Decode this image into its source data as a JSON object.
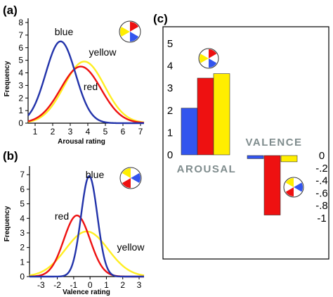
{
  "colors": {
    "blue": "#2233aa",
    "red": "#ee1111",
    "yellow": "#ffee22",
    "bar_blue": "#3355ee",
    "bar_yellow": "#ffee00",
    "label_gray": "#7f8c8d"
  },
  "chart_data": [
    {
      "panel_label": "(a)",
      "type": "line",
      "xlabel": "Arousal rating",
      "ylabel": "Frequency",
      "xlim": [
        0.6,
        7.2
      ],
      "ylim": [
        0,
        8
      ],
      "x_ticks": [
        "1",
        "2",
        "3",
        "4",
        "5",
        "6",
        "7"
      ],
      "y_ticks": [
        "0",
        "1",
        "2",
        "3",
        "4",
        "5",
        "6",
        "7",
        "8"
      ],
      "series": [
        {
          "name": "blue",
          "color": "#2233aa",
          "mean": 2.45,
          "sd": 0.85,
          "peak": 6.5
        },
        {
          "name": "yellow",
          "color": "#ffee22",
          "mean": 3.8,
          "sd": 1.15,
          "peak": 4.9
        },
        {
          "name": "red",
          "color": "#ee1111",
          "mean": 3.6,
          "sd": 1.15,
          "peak": 4.5
        }
      ]
    },
    {
      "panel_label": "(b)",
      "type": "line",
      "xlabel": "Valence rating",
      "ylabel": "Frequency",
      "xlim": [
        -3.7,
        3.3
      ],
      "ylim": [
        0,
        7.3
      ],
      "x_ticks": [
        "-3",
        "-2",
        "-1",
        "0",
        "1",
        "2",
        "3"
      ],
      "y_ticks": [
        "0",
        "1",
        "2",
        "3",
        "4",
        "5",
        "6",
        "7"
      ],
      "series": [
        {
          "name": "blue",
          "color": "#2233aa",
          "mean": -0.05,
          "sd": 0.5,
          "peak": 6.9
        },
        {
          "name": "red",
          "color": "#ee1111",
          "mean": -0.8,
          "sd": 0.8,
          "peak": 4.2
        },
        {
          "name": "yellow",
          "color": "#ffee22",
          "mean": -0.2,
          "sd": 1.3,
          "peak": 3.1
        }
      ]
    },
    {
      "panel_label": "(c)",
      "type": "bar",
      "arousal": {
        "label": "AROUSAL",
        "categories": [
          "blue",
          "red",
          "yellow"
        ],
        "values": [
          2.1,
          3.45,
          3.65
        ],
        "y_ticks": [
          "0",
          "1",
          "2",
          "3",
          "4",
          "5"
        ],
        "ylim": [
          0,
          5
        ]
      },
      "valence": {
        "label": "VALENCE",
        "categories": [
          "blue",
          "red",
          "yellow"
        ],
        "values": [
          -0.05,
          -0.95,
          -0.1
        ],
        "y_ticks": [
          "0",
          "-.2",
          "-.4",
          "-.6",
          "-.8",
          "-1"
        ],
        "ylim": [
          -1,
          0
        ]
      }
    }
  ]
}
